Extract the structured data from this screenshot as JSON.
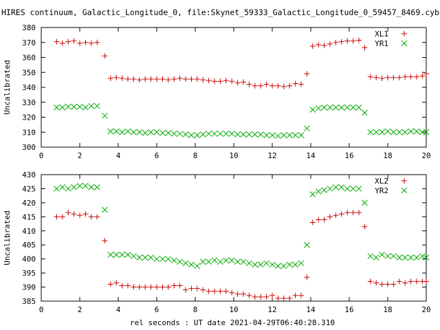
{
  "title": "HIRES continuum, Galactic_Longitude_0, file:Skynet_59333_Galactic_Longitude_0_59457_8469.cyb",
  "xlabel": "rel seconds : UT date 2021-04-29T06:40:28.310",
  "colors": {
    "series1": "#cc0000",
    "series2": "#00aa00"
  },
  "chart_data": [
    {
      "type": "scatter",
      "ylabel": "Uncalibrated",
      "xlim": [
        0,
        20
      ],
      "ylim": [
        300,
        380
      ],
      "xticks": [
        0,
        2,
        4,
        6,
        8,
        10,
        12,
        14,
        16,
        18,
        20
      ],
      "yticks": [
        300,
        310,
        320,
        330,
        340,
        350,
        360,
        370,
        380
      ],
      "legend": "top-right",
      "x": [
        0.8,
        1.1,
        1.4,
        1.7,
        2.0,
        2.3,
        2.6,
        2.9,
        3.3,
        3.6,
        3.9,
        4.2,
        4.5,
        4.8,
        5.1,
        5.4,
        5.7,
        6.0,
        6.3,
        6.6,
        6.9,
        7.2,
        7.5,
        7.8,
        8.1,
        8.4,
        8.7,
        9.0,
        9.3,
        9.6,
        9.9,
        10.2,
        10.5,
        10.8,
        11.1,
        11.4,
        11.7,
        12.0,
        12.3,
        12.6,
        12.9,
        13.2,
        13.5,
        13.8,
        14.1,
        14.4,
        14.7,
        15.0,
        15.3,
        15.6,
        15.9,
        16.2,
        16.5,
        16.8,
        17.1,
        17.4,
        17.7,
        18.0,
        18.3,
        18.6,
        18.9,
        19.2,
        19.5,
        19.8,
        20.0
      ],
      "series": [
        {
          "name": "XL1",
          "marker": "plus",
          "values": [
            370.5,
            369.5,
            370.5,
            371,
            369.5,
            370,
            369.5,
            370,
            361,
            346,
            346.5,
            346,
            345.5,
            345.5,
            345,
            345.5,
            345.5,
            345.5,
            345.5,
            345,
            345.5,
            346,
            345.5,
            345.5,
            345.5,
            345,
            344.5,
            344,
            344,
            344.5,
            344,
            343,
            343.5,
            342,
            341,
            341,
            342,
            341,
            341,
            340.5,
            341,
            342.5,
            342,
            349,
            367.5,
            368.5,
            368,
            369,
            370,
            370.5,
            371,
            371,
            371.5,
            366.5,
            347,
            346.5,
            346,
            346.5,
            346.5,
            346.5,
            347,
            347,
            347,
            347.5,
            349
          ]
        },
        {
          "name": "YR1",
          "marker": "x",
          "values": [
            326.5,
            326.5,
            327,
            327,
            327,
            326.5,
            327.5,
            327.5,
            321,
            310.5,
            310.5,
            310,
            310.5,
            310,
            310,
            309.5,
            310,
            310,
            309.5,
            309.5,
            309,
            309,
            308.5,
            308,
            308,
            308.5,
            309,
            309,
            309,
            309,
            309,
            308.5,
            308.5,
            308.5,
            308.5,
            308.5,
            308,
            308,
            307.5,
            308,
            308,
            308,
            308,
            312.5,
            325,
            326,
            326.5,
            326.5,
            326.5,
            326.5,
            326.5,
            326.5,
            326.5,
            323,
            310,
            310,
            310,
            310.5,
            310,
            310,
            310,
            310.5,
            310.5,
            310,
            310
          ]
        }
      ]
    },
    {
      "type": "scatter",
      "ylabel": "Uncalibrated",
      "xlim": [
        0,
        20
      ],
      "ylim": [
        385,
        430
      ],
      "xticks": [
        0,
        2,
        4,
        6,
        8,
        10,
        12,
        14,
        16,
        18,
        20
      ],
      "yticks": [
        385,
        390,
        395,
        400,
        405,
        410,
        415,
        420,
        425,
        430
      ],
      "legend": "top-right",
      "x": [
        0.8,
        1.1,
        1.4,
        1.7,
        2.0,
        2.3,
        2.6,
        2.9,
        3.3,
        3.6,
        3.9,
        4.2,
        4.5,
        4.8,
        5.1,
        5.4,
        5.7,
        6.0,
        6.3,
        6.6,
        6.9,
        7.2,
        7.5,
        7.8,
        8.1,
        8.4,
        8.7,
        9.0,
        9.3,
        9.6,
        9.9,
        10.2,
        10.5,
        10.8,
        11.1,
        11.4,
        11.7,
        12.0,
        12.3,
        12.6,
        12.9,
        13.2,
        13.5,
        13.8,
        14.1,
        14.4,
        14.7,
        15.0,
        15.3,
        15.6,
        15.9,
        16.2,
        16.5,
        16.8,
        17.1,
        17.4,
        17.7,
        18.0,
        18.3,
        18.6,
        18.9,
        19.2,
        19.5,
        19.8,
        20.0
      ],
      "series": [
        {
          "name": "XL2",
          "marker": "plus",
          "values": [
            415,
            415,
            416.5,
            416,
            415.5,
            416,
            415,
            415,
            406.5,
            391,
            391.5,
            390.5,
            390.5,
            390,
            390,
            390,
            390,
            390,
            390,
            390,
            390.5,
            390.5,
            389,
            389.5,
            389.5,
            389,
            388.5,
            388.5,
            388.5,
            388.5,
            388,
            387.5,
            387.5,
            387,
            386.5,
            386.5,
            386.5,
            387,
            386,
            386,
            386,
            387,
            387,
            393.5,
            413,
            414,
            414,
            415,
            415.5,
            416,
            416.5,
            416.5,
            416.5,
            411.5,
            392,
            391.5,
            391,
            391,
            391,
            392,
            391.5,
            392,
            392,
            392,
            392
          ]
        },
        {
          "name": "YR2",
          "marker": "x",
          "values": [
            425,
            425.5,
            425,
            425.5,
            426,
            426,
            425.5,
            425.5,
            417.5,
            401.5,
            401.5,
            401.5,
            401.5,
            401,
            400.5,
            400.5,
            400.5,
            400,
            400,
            400,
            399.5,
            399,
            398.5,
            398,
            397.5,
            399,
            399,
            399.5,
            399,
            399.5,
            399.5,
            399,
            399,
            398.5,
            398,
            398,
            398.5,
            398,
            397.5,
            397.5,
            398,
            398,
            398.5,
            405,
            423,
            424,
            424.5,
            425,
            425.5,
            425.5,
            425,
            425,
            425,
            420,
            401,
            400.5,
            401.5,
            401,
            401,
            400.5,
            400.5,
            400.5,
            400.5,
            401,
            400.5
          ]
        }
      ]
    }
  ]
}
